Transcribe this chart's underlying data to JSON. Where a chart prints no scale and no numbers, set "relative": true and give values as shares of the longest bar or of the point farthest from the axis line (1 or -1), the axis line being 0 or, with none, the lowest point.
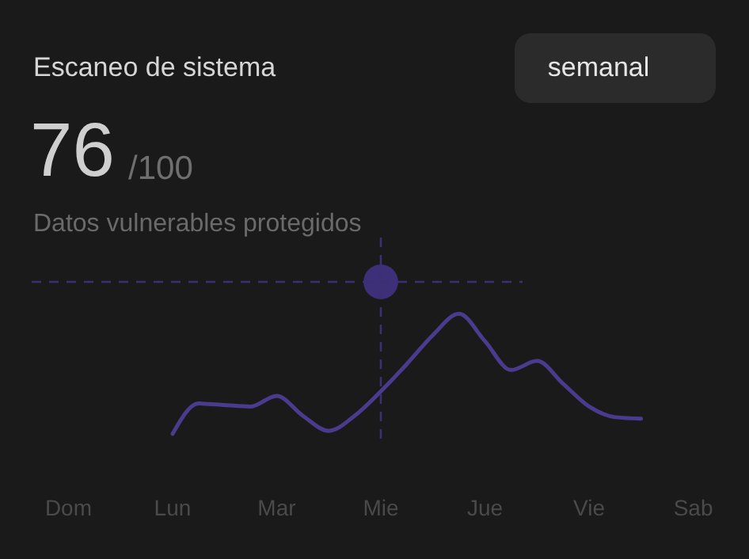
{
  "chart_data": {
    "type": "line",
    "title": "Escaneo de sistema",
    "subtitle": "Datos vulnerables protegidos",
    "annotations": [
      "semanal",
      "76",
      "/100"
    ],
    "relative": true,
    "categories": [
      "Dom",
      null,
      null,
      null,
      "Lun",
      null,
      null,
      null,
      "Mar",
      null,
      null,
      null,
      "Mie",
      null,
      null,
      null,
      "Jue",
      null,
      null,
      null,
      "Vie",
      null,
      null,
      null,
      "Sab"
    ],
    "series": [
      {
        "type": "line",
        "color": "#4b3b8f",
        "values": [
          null,
          null,
          null,
          null,
          0,
          0.2,
          0.19,
          0.18,
          0.25,
          0.12,
          0.02,
          0.12,
          0.28,
          0.46,
          0.65,
          0.79,
          0.61,
          0.42,
          0.48,
          0.33,
          0.18,
          0.11,
          0.1,
          null,
          null
        ]
      },
      {
        "type": "scatter",
        "color": "#3d2f78",
        "marker": "circle",
        "values": [
          null,
          null,
          null,
          null,
          null,
          null,
          null,
          null,
          null,
          null,
          null,
          null,
          1,
          null,
          null,
          null,
          null,
          null,
          null,
          null,
          null,
          null,
          null,
          null,
          null
        ]
      }
    ],
    "ref_lines": [
      {
        "axis": "y",
        "value": 1,
        "color": "#3b3070",
        "line_style": "dashed"
      },
      {
        "axis": "x",
        "value": "Mie",
        "color": "#3b3070",
        "line_style": "dashed"
      }
    ]
  }
}
